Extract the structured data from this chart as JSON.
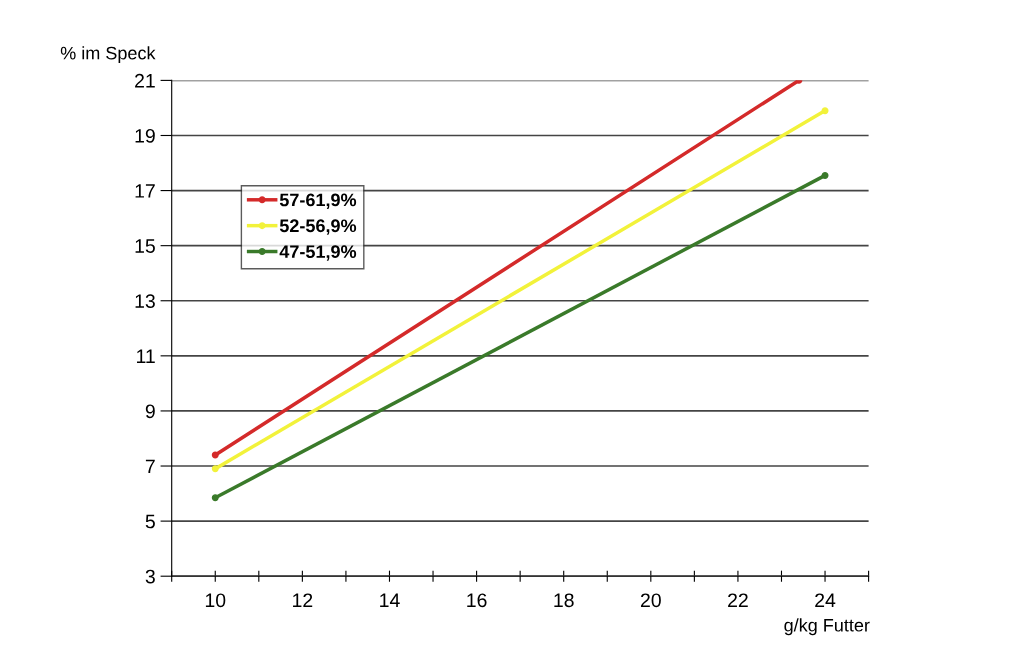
{
  "chart_data": {
    "type": "line",
    "ylabel": "% im Speck",
    "xlabel": "g/kg Futter",
    "series": [
      {
        "name": "57-61,9%",
        "color": "#d42a2a",
        "x": [
          10,
          23.4
        ],
        "values": [
          7.4,
          21
        ]
      },
      {
        "name": "52-56,9%",
        "color": "#f2f23a",
        "x": [
          10,
          24
        ],
        "values": [
          6.9,
          19.9
        ]
      },
      {
        "name": "47-51,9%",
        "color": "#3a7a2a",
        "x": [
          10,
          24
        ],
        "values": [
          5.85,
          17.55
        ]
      }
    ],
    "xlim": [
      9,
      25
    ],
    "ylim": [
      3,
      21
    ],
    "xticks": [
      {
        "value": 9,
        "label": null
      },
      10,
      {
        "value": 11,
        "label": null
      },
      12,
      {
        "value": 13,
        "label": null
      },
      14,
      {
        "value": 15,
        "label": null
      },
      16,
      {
        "value": 17,
        "label": null
      },
      18,
      {
        "value": 19,
        "label": null
      },
      20,
      {
        "value": 21,
        "label": null
      },
      22,
      {
        "value": 23,
        "label": null
      },
      24,
      {
        "value": 25,
        "label": null
      }
    ],
    "yticks": [
      3,
      5,
      7,
      9,
      11,
      13,
      15,
      17,
      19,
      21
    ],
    "grid": "y",
    "legend": "top left",
    "marker": "circle",
    "line_style": "solid"
  }
}
